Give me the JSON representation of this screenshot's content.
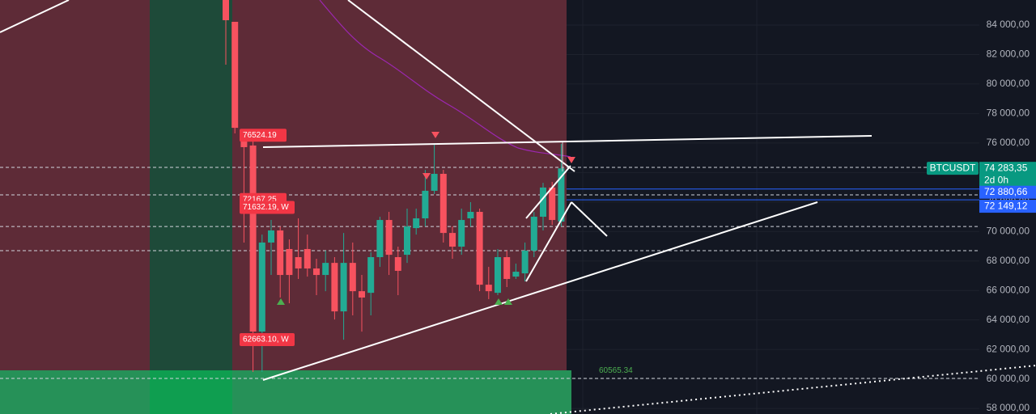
{
  "chart_data": {
    "type": "candlestick",
    "open": [
      85700,
      84220,
      76920,
      75830,
      63210,
      69250,
      70070,
      68810,
      68260,
      68810,
      67490,
      67050,
      67870,
      64580,
      67870,
      65950,
      65840,
      68260,
      70780,
      68260,
      68420,
      70230,
      70890,
      72760,
      73910,
      69900,
      68970,
      70890,
      71330,
      66390,
      65840,
      68260,
      66940,
      67160,
      68700,
      71000,
      72980,
      70670
    ],
    "high": [
      85700,
      84220,
      76920,
      76100,
      69790,
      70780,
      70340,
      69460,
      70890,
      69790,
      68150,
      68700,
      68260,
      69900,
      69250,
      67050,
      68590,
      71000,
      71330,
      68970,
      71550,
      71550,
      74180,
      75940,
      74180,
      70340,
      71550,
      71990,
      71550,
      67600,
      68810,
      68700,
      67820,
      69250,
      71330,
      73300,
      73360,
      75940
    ],
    "low": [
      81310,
      76650,
      69250,
      60470,
      60470,
      67050,
      65520,
      65130,
      66780,
      66940,
      65680,
      65950,
      64030,
      62660,
      64310,
      63210,
      64310,
      67600,
      67050,
      65680,
      67870,
      69790,
      70340,
      72540,
      69250,
      68150,
      68420,
      70340,
      65950,
      65410,
      65680,
      66230,
      66780,
      66610,
      68260,
      70070,
      70450,
      70340
    ],
    "close": [
      84330,
      77030,
      75720,
      63210,
      69250,
      70070,
      67050,
      67050,
      67490,
      67490,
      67050,
      67870,
      64580,
      67870,
      65950,
      65520,
      68260,
      70780,
      68420,
      67330,
      70340,
      70890,
      72760,
      73910,
      69900,
      68970,
      70780,
      71330,
      66390,
      65950,
      68260,
      66780,
      67270,
      68700,
      71000,
      72980,
      70780,
      74280
    ],
    "up_color": "#22ab94",
    "down_color": "#f7525f",
    "ylim": [
      57620,
      85700
    ],
    "yticks": [
      {
        "value": 58000,
        "label": "58 000,00"
      },
      {
        "value": 60000,
        "label": "60 000,00"
      },
      {
        "value": 62000,
        "label": "62 000,00"
      },
      {
        "value": 64000,
        "label": "64 000,00"
      },
      {
        "value": 66000,
        "label": "66 000,00"
      },
      {
        "value": 68000,
        "label": "68 000,00"
      },
      {
        "value": 70000,
        "label": "70 000,00"
      },
      {
        "value": 72000,
        "label": "72 000,00"
      },
      {
        "value": 74000,
        "label": "74 000,00"
      },
      {
        "value": 76000,
        "label": "76 000,00"
      },
      {
        "value": 78000,
        "label": "78 000,00"
      },
      {
        "value": 80000,
        "label": "80 000,00"
      },
      {
        "value": 82000,
        "label": "82 000,00"
      },
      {
        "value": 84000,
        "label": "84 000,00"
      }
    ],
    "grid": true,
    "symbol": "BTCUSDT",
    "last_price": {
      "value": 74283.35,
      "label": "74 283,35"
    },
    "countdown": "2d 0h",
    "price_lines": [
      {
        "value": 72880.66,
        "label": "72 880,66"
      },
      {
        "value": 72149.12,
        "label": "72 149,12"
      }
    ],
    "dashed_levels": [
      74350,
      72480,
      70340,
      68700,
      60030
    ],
    "annotations": [
      {
        "value": 76524.19,
        "label": "76524.19"
      },
      {
        "value": 72167.25,
        "label": "72167.25"
      },
      {
        "value": 71632.19,
        "label": "71632.19, W"
      },
      {
        "value": 62663.1,
        "label": "62663.10, W"
      },
      {
        "value": 60565.34,
        "label": "60565.34"
      }
    ]
  }
}
